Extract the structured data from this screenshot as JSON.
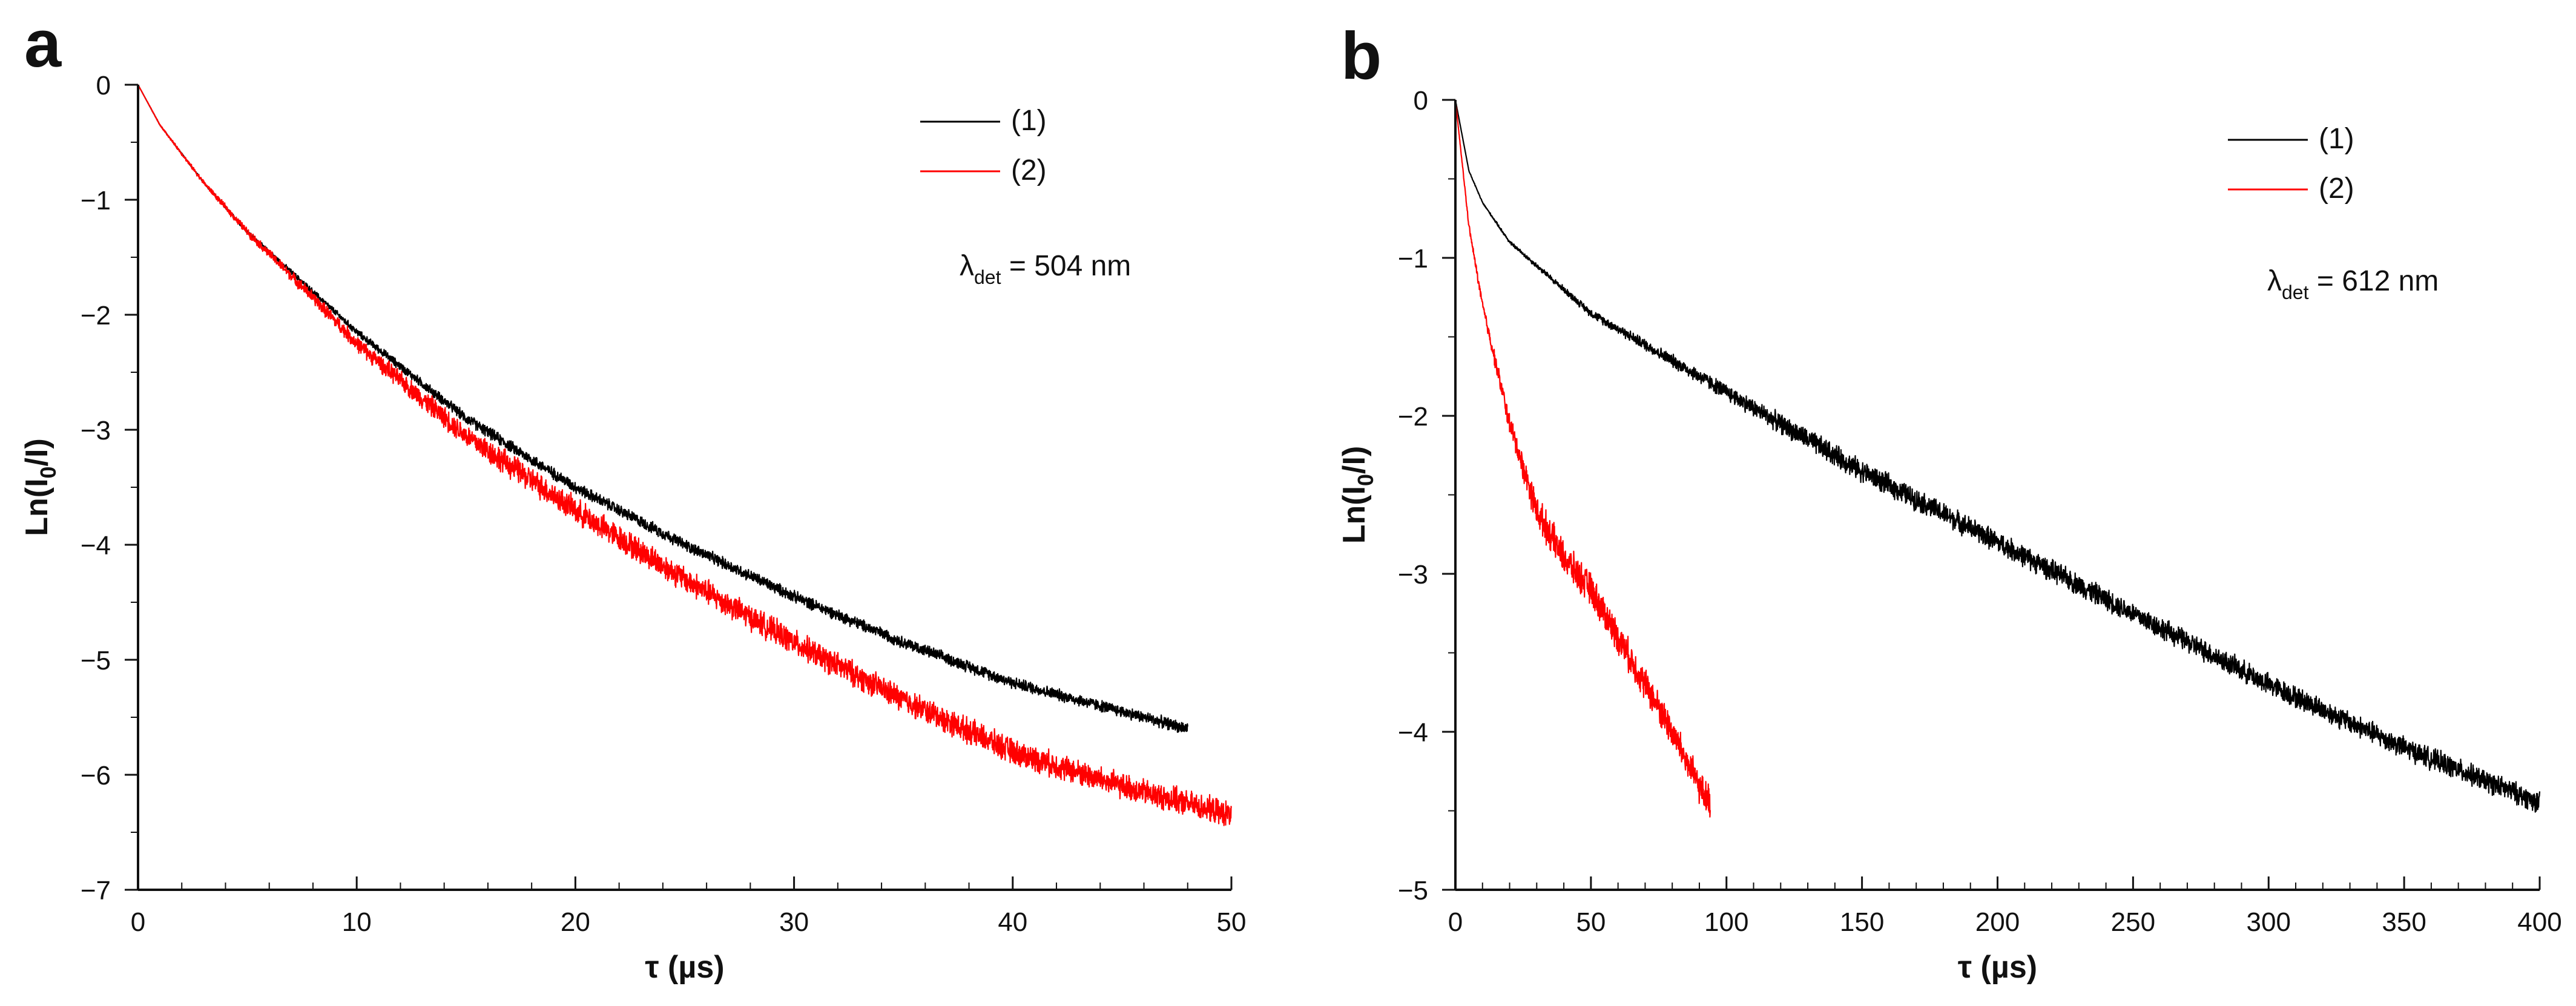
{
  "chart_data": [
    {
      "type": "line",
      "panel_label": "a",
      "title": "",
      "xlabel": "τ (µs)",
      "ylabel": "Ln(I0/I)",
      "ylabel_parts": {
        "main": "Ln(I",
        "sub": "0",
        "rest": "/I)"
      },
      "xlim": [
        0,
        50
      ],
      "ylim": [
        -7,
        0
      ],
      "xticks": [
        0,
        10,
        20,
        30,
        40,
        50
      ],
      "yticks": [
        0,
        -1,
        -2,
        -3,
        -4,
        -5,
        -6,
        -7
      ],
      "annotation": {
        "lambda": "λ",
        "sub": "det",
        "text": " = 504 nm"
      },
      "legend_position": "top-right",
      "series": [
        {
          "name": "(1)",
          "color": "#000000",
          "noise": 0.06,
          "points": [
            [
              0,
              0
            ],
            [
              1,
              -0.35
            ],
            [
              3,
              -0.85
            ],
            [
              5,
              -1.28
            ],
            [
              8,
              -1.8
            ],
            [
              10,
              -2.15
            ],
            [
              15,
              -2.9
            ],
            [
              20,
              -3.5
            ],
            [
              25,
              -4.0
            ],
            [
              30,
              -4.45
            ],
            [
              35,
              -4.85
            ],
            [
              40,
              -5.2
            ],
            [
              45,
              -5.45
            ],
            [
              48,
              -5.6
            ]
          ]
        },
        {
          "name": "(2)",
          "color": "#ff0000",
          "noise": 0.13,
          "points": [
            [
              0,
              0
            ],
            [
              1,
              -0.35
            ],
            [
              3,
              -0.85
            ],
            [
              5,
              -1.28
            ],
            [
              8,
              -1.85
            ],
            [
              10,
              -2.25
            ],
            [
              15,
              -3.05
            ],
            [
              20,
              -3.7
            ],
            [
              25,
              -4.3
            ],
            [
              30,
              -4.85
            ],
            [
              35,
              -5.35
            ],
            [
              40,
              -5.8
            ],
            [
              45,
              -6.1
            ],
            [
              50,
              -6.35
            ]
          ]
        }
      ]
    },
    {
      "type": "line",
      "panel_label": "b",
      "title": "",
      "xlabel": "τ (µs)",
      "ylabel": "Ln(I0/I)",
      "ylabel_parts": {
        "main": "Ln(I",
        "sub": "0",
        "rest": "/I)"
      },
      "xlim": [
        0,
        400
      ],
      "ylim": [
        -5,
        0
      ],
      "xticks": [
        0,
        50,
        100,
        150,
        200,
        250,
        300,
        350,
        400
      ],
      "yticks": [
        0,
        -1,
        -2,
        -3,
        -4,
        -5
      ],
      "annotation": {
        "lambda": "λ",
        "sub": "det",
        "text": " = 612 nm"
      },
      "legend_position": "top-right",
      "series": [
        {
          "name": "(1)",
          "color": "#000000",
          "noise": 0.08,
          "points": [
            [
              0,
              0
            ],
            [
              5,
              -0.45
            ],
            [
              10,
              -0.65
            ],
            [
              20,
              -0.9
            ],
            [
              50,
              -1.35
            ],
            [
              100,
              -1.85
            ],
            [
              150,
              -2.35
            ],
            [
              200,
              -2.8
            ],
            [
              250,
              -3.25
            ],
            [
              300,
              -3.7
            ],
            [
              350,
              -4.1
            ],
            [
              400,
              -4.45
            ]
          ]
        },
        {
          "name": "(2)",
          "color": "#ff0000",
          "noise": 0.12,
          "points": [
            [
              0,
              0
            ],
            [
              5,
              -0.8
            ],
            [
              10,
              -1.3
            ],
            [
              20,
              -2.05
            ],
            [
              30,
              -2.6
            ],
            [
              40,
              -2.9
            ],
            [
              50,
              -3.1
            ],
            [
              60,
              -3.4
            ],
            [
              70,
              -3.7
            ],
            [
              80,
              -4.0
            ],
            [
              90,
              -4.35
            ],
            [
              94,
              -4.45
            ]
          ]
        }
      ]
    }
  ]
}
